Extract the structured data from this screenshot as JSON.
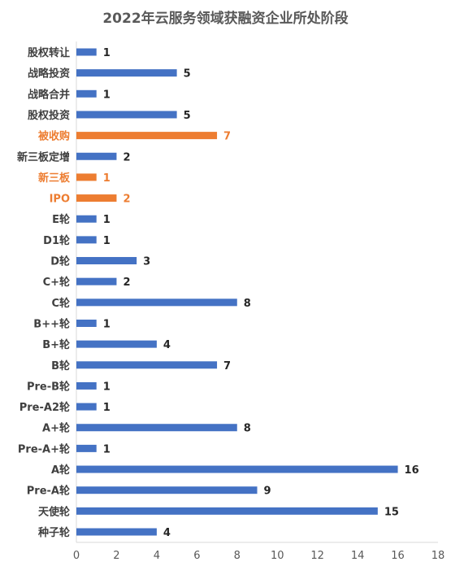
{
  "chart_data": {
    "type": "bar",
    "orientation": "horizontal",
    "title": "2022年云服务领域获融资企业所处阶段",
    "xlabel": "",
    "ylabel": "",
    "xlim": [
      0,
      18
    ],
    "xticks": [
      0,
      2,
      4,
      6,
      8,
      10,
      12,
      14,
      16,
      18
    ],
    "grid": false,
    "legend": "none",
    "categories": [
      "股权转让",
      "战略投资",
      "战略合并",
      "股权投资",
      "被收购",
      "新三板定增",
      "新三板",
      "IPO",
      "E轮",
      "D1轮",
      "D轮",
      "C+轮",
      "C轮",
      "B++轮",
      "B+轮",
      "B轮",
      "Pre-B轮",
      "Pre-A2轮",
      "A+轮",
      "Pre-A+轮",
      "A轮",
      "Pre-A轮",
      "天使轮",
      "种子轮"
    ],
    "values": [
      1,
      5,
      1,
      5,
      7,
      2,
      1,
      2,
      1,
      1,
      3,
      2,
      8,
      1,
      4,
      7,
      1,
      1,
      8,
      1,
      16,
      9,
      15,
      4
    ],
    "highlighted": [
      "被收购",
      "新三板",
      "IPO"
    ],
    "colors": {
      "default": "#4472C4",
      "highlight": "#ED7D31",
      "axis": "#D9D9D9"
    }
  }
}
